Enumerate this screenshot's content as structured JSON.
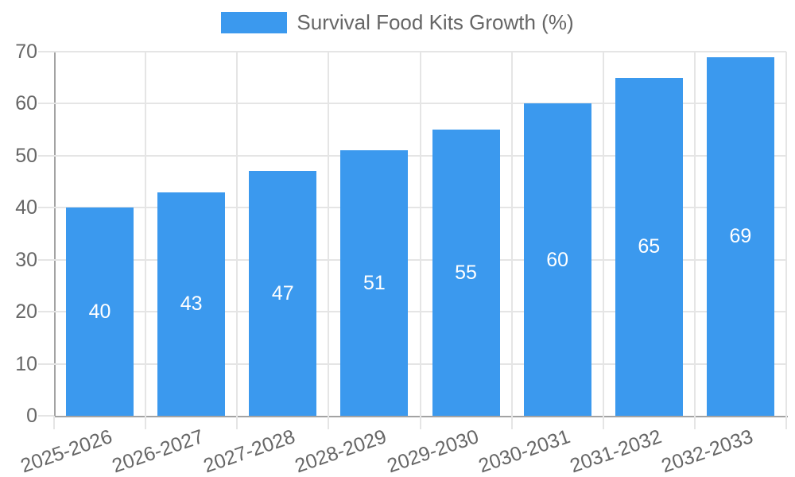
{
  "chart_data": {
    "type": "bar",
    "legend_label": "Survival Food Kits Growth (%)",
    "legend_position": "top",
    "categories": [
      "2025-2026",
      "2026-2027",
      "2027-2028",
      "2028-2029",
      "2029-2030",
      "2030-2031",
      "2031-2032",
      "2032-2033"
    ],
    "values": [
      40,
      43,
      47,
      51,
      55,
      60,
      65,
      69
    ],
    "bar_value_labels": [
      "40",
      "43",
      "47",
      "51",
      "55",
      "60",
      "65",
      "69"
    ],
    "yticks": [
      0,
      10,
      20,
      30,
      40,
      50,
      60,
      70
    ],
    "ylim": [
      0,
      70
    ],
    "grid": true,
    "x_label_rotation_deg": -19,
    "colors": {
      "bar": "#3B99EE",
      "bar_label": "#FFFFFF",
      "text": "#666666",
      "grid": "#E5E5E5",
      "axis": "#A3A3A3",
      "background": "#FFFFFF"
    }
  }
}
